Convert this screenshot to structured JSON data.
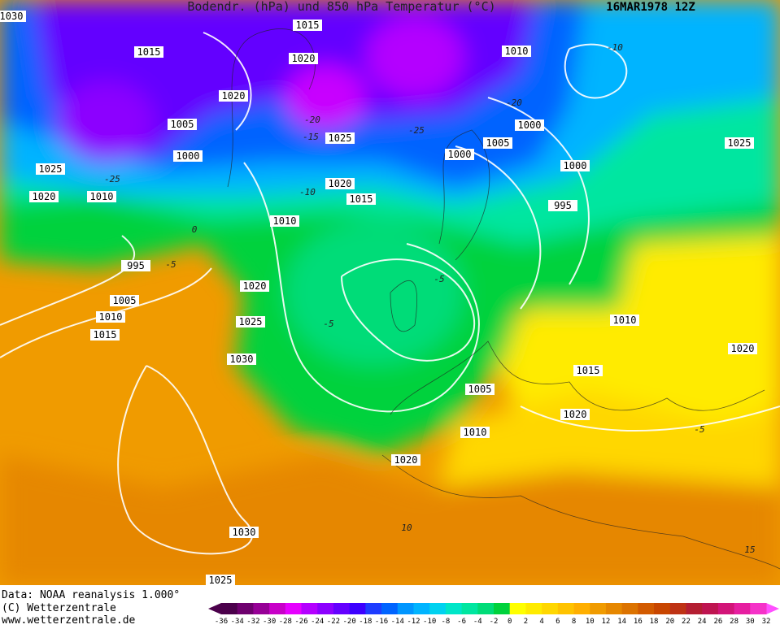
{
  "header": {
    "title": "Bodendr. (hPa) und 850 hPa Temperatur (°C)",
    "date": "16MAR1978 12Z"
  },
  "footer": {
    "lines": [
      "Data: NOAA reanalysis 1.000°",
      "(C) Wetterzentrale",
      "www.wetterzentrale.de"
    ]
  },
  "legend": {
    "labels": [
      -36,
      -34,
      -32,
      -30,
      -28,
      -26,
      -24,
      -22,
      -20,
      -18,
      -16,
      -14,
      -12,
      -10,
      -8,
      -6,
      -4,
      -2,
      0,
      2,
      4,
      6,
      8,
      10,
      12,
      14,
      16,
      18,
      20,
      22,
      24,
      26,
      28,
      30,
      32
    ],
    "colors": [
      "#4b004b",
      "#6e006e",
      "#960096",
      "#c800c8",
      "#e600ff",
      "#b400ff",
      "#8c00ff",
      "#6400ff",
      "#3c00ff",
      "#1e3cff",
      "#0064ff",
      "#0096ff",
      "#00b4ff",
      "#00d2f0",
      "#00e6c8",
      "#00e6a0",
      "#00dc78",
      "#00d23c",
      "#ffff00",
      "#ffeb00",
      "#ffd700",
      "#ffc300",
      "#ffaf00",
      "#f09b00",
      "#e68700",
      "#dc7300",
      "#d25a00",
      "#c84600",
      "#be3214",
      "#b41e32",
      "#be1450",
      "#d21478",
      "#e61ea0",
      "#f532c8"
    ]
  },
  "isobar_labels": [
    1030,
    1015,
    1015,
    1020,
    1010,
    1020,
    1005,
    1025,
    1000,
    1005,
    1000,
    1000,
    1025,
    1000,
    1025,
    1020,
    1015,
    1020,
    1010,
    995,
    1010,
    995,
    1020,
    1005,
    1010,
    1025,
    1015,
    1010,
    1020,
    1030,
    1015,
    1005,
    1020,
    1010,
    1020,
    1030,
    1025
  ],
  "temperature_labels": [
    -10,
    -5,
    0,
    -5,
    -5,
    10,
    15,
    -5,
    -25,
    -20,
    -15,
    -25,
    -20,
    -10
  ]
}
